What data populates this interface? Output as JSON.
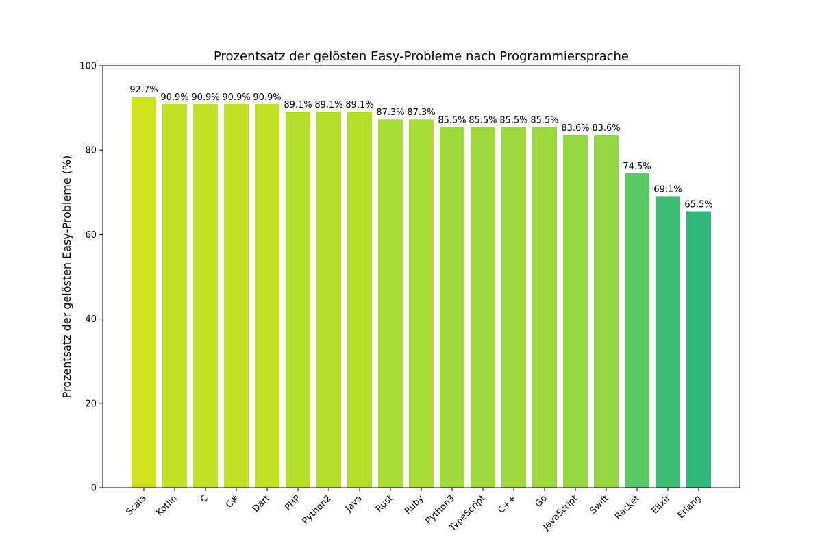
{
  "chart_data": {
    "type": "bar",
    "title": "Prozentsatz der gelösten Easy-Probleme nach Programmiersprache",
    "xlabel": "",
    "ylabel": "Prozentsatz der gelösten Easy-Probleme (%)",
    "ylim": [
      0,
      100
    ],
    "yticks": [
      "0",
      "20",
      "40",
      "60",
      "80",
      "100"
    ],
    "grid": false,
    "categories": [
      "Scala",
      "Kotlin",
      "C",
      "C#",
      "Dart",
      "PHP",
      "Python2",
      "Java",
      "Rust",
      "Ruby",
      "Python3",
      "TypeScript",
      "C++",
      "Go",
      "JavaScript",
      "Swift",
      "Racket",
      "Elixir",
      "Erlang"
    ],
    "values": [
      92.7,
      90.9,
      90.9,
      90.9,
      90.9,
      89.1,
      89.1,
      89.1,
      87.3,
      87.3,
      85.5,
      85.5,
      85.5,
      85.5,
      83.6,
      83.6,
      74.5,
      69.1,
      65.5
    ],
    "value_labels": [
      "92.7%",
      "90.9%",
      "90.9%",
      "90.9%",
      "90.9%",
      "89.1%",
      "89.1%",
      "89.1%",
      "87.3%",
      "87.3%",
      "85.5%",
      "85.5%",
      "85.5%",
      "85.5%",
      "83.6%",
      "83.6%",
      "74.5%",
      "69.1%",
      "65.5%"
    ],
    "colors": [
      "#cde11d",
      "#c2e125",
      "#c2e125",
      "#c2e125",
      "#c2e125",
      "#b5de2b",
      "#b5de2b",
      "#b5de2b",
      "#a8db34",
      "#a8db34",
      "#9bd93c",
      "#9bd93c",
      "#9bd93c",
      "#9bd93c",
      "#93d741",
      "#93d741",
      "#5ac864",
      "#3fbc73",
      "#32b67a"
    ]
  }
}
